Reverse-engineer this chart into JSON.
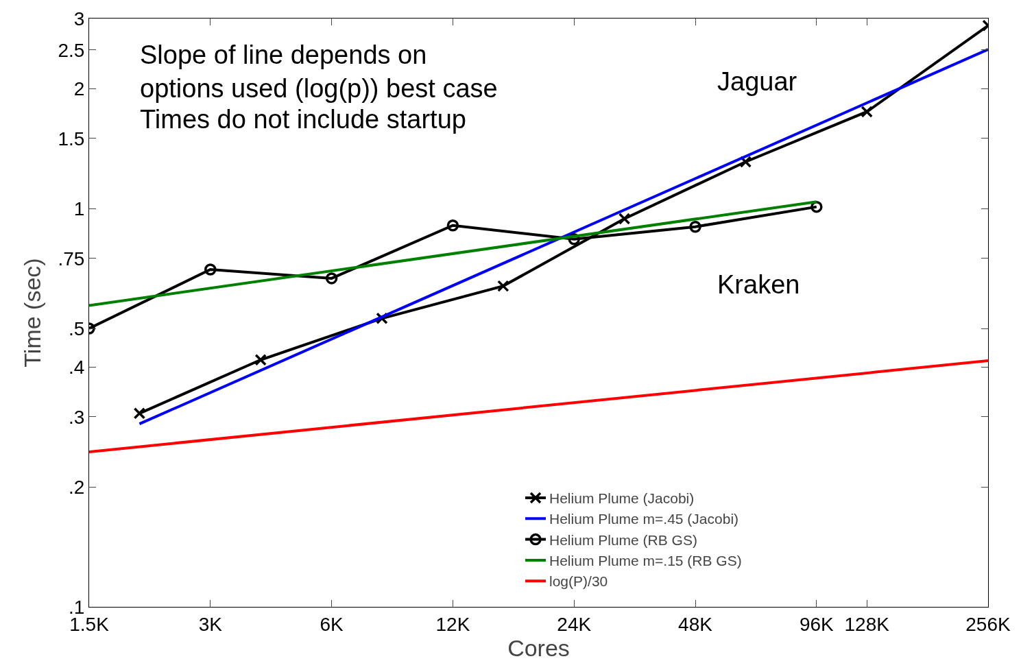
{
  "chart_data": {
    "type": "line",
    "xlabel": "Cores",
    "ylabel": "Time (sec)",
    "log": "xy",
    "grid": false,
    "legend": "bottom right",
    "xlim": [
      1.5,
      256
    ],
    "xticks": [
      {
        "value": 1.5,
        "label": "1.5K"
      },
      {
        "value": 3,
        "label": "3K"
      },
      {
        "value": 6,
        "label": "6K"
      },
      {
        "value": 12,
        "label": "12K"
      },
      {
        "value": 24,
        "label": "24K"
      },
      {
        "value": 48,
        "label": "48K"
      },
      {
        "value": 96,
        "label": "96K"
      },
      {
        "value": 128,
        "label": "128K"
      },
      {
        "value": 256,
        "label": "256K"
      }
    ],
    "ylim": [
      0.1,
      3
    ],
    "yticks": [
      {
        "value": 0.1,
        "label": ".1"
      },
      {
        "value": 0.2,
        "label": ".2"
      },
      {
        "value": 0.3,
        "label": ".3"
      },
      {
        "value": 0.4,
        "label": ".4"
      },
      {
        "value": 0.5,
        "label": ".5"
      },
      {
        "value": 0.75,
        "label": ".75"
      },
      1,
      1.5,
      2,
      2.5,
      3
    ],
    "series": [
      {
        "name": "Helium Plume (Jacobi)",
        "color": "#000000",
        "marker": "cross",
        "x": [
          2,
          4,
          8,
          16,
          32,
          64,
          128,
          256
        ],
        "values": [
          0.306,
          0.417,
          0.53,
          0.639,
          0.943,
          1.31,
          1.75,
          2.88
        ]
      },
      {
        "name": "Helium Plume m=.45 (Jacobi)",
        "color": "#0000ff",
        "marker": "none",
        "x": [
          2,
          256
        ],
        "values": [
          0.288,
          2.51
        ]
      },
      {
        "name": "Helium Plume (RB GS)",
        "color": "#000000",
        "marker": "circle",
        "x": [
          1.5,
          3,
          6,
          12,
          24,
          48,
          96
        ],
        "values": [
          0.5,
          0.703,
          0.668,
          0.907,
          0.838,
          0.9,
          1.01
        ]
      },
      {
        "name": "Helium Plume m=.15 (RB GS)",
        "color": "#008000",
        "marker": "none",
        "x": [
          1.5,
          96
        ],
        "values": [
          0.571,
          1.04
        ]
      },
      {
        "name": "log(P)/30",
        "color": "#ff0000",
        "marker": "none",
        "x": [
          1.5,
          256
        ],
        "values": [
          0.245,
          0.415
        ]
      }
    ],
    "annotations": [
      "Slope of line depends on options used (log(p)) best case",
      "Times do not include startup",
      "Jaguar",
      "Kraken"
    ]
  }
}
